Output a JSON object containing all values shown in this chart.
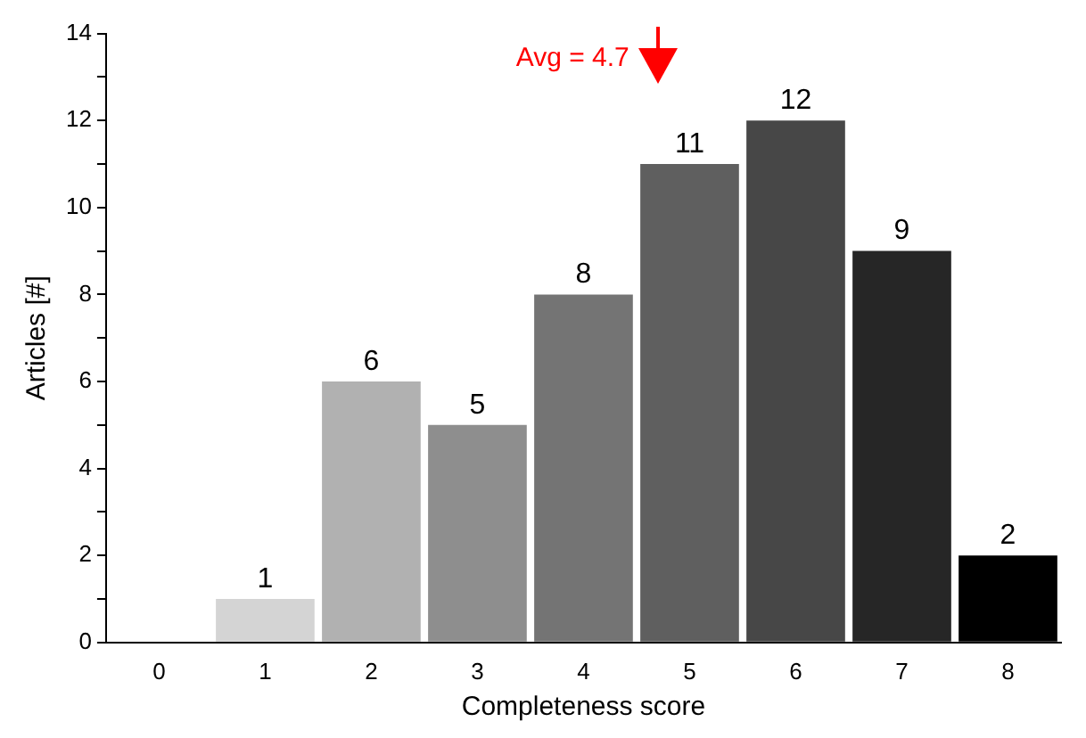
{
  "chart_data": {
    "type": "bar",
    "xlabel": "Completeness score",
    "ylabel": "Articles [#]",
    "x": [
      0,
      1,
      2,
      3,
      4,
      5,
      6,
      7,
      8
    ],
    "xlim": [
      -0.5,
      8.5
    ],
    "xticks": [
      0,
      1,
      2,
      3,
      4,
      5,
      6,
      7,
      8
    ],
    "values": [
      0,
      1,
      6,
      5,
      8,
      11,
      12,
      9,
      2
    ],
    "value_labels": [
      null,
      "1",
      "6",
      "5",
      "8",
      "11",
      "12",
      "9",
      "2"
    ],
    "colors": [
      "#e0e0e0",
      "#d4d4d4",
      "#b1b1b1",
      "#8e8e8e",
      "#747474",
      "#5f5f5f",
      "#474747",
      "#262626",
      "#000000"
    ],
    "ylim": [
      0,
      14
    ],
    "yticks": [
      0,
      {
        "value": 1,
        "label": null
      },
      2,
      {
        "value": 3,
        "label": null
      },
      4,
      {
        "value": 5,
        "label": null
      },
      6,
      {
        "value": 7,
        "label": null
      },
      8,
      {
        "value": 9,
        "label": null
      },
      10,
      {
        "value": 11,
        "label": null
      },
      12,
      {
        "value": 13,
        "label": null
      },
      14
    ],
    "grid": false,
    "legend": false,
    "ref_lines": [
      {
        "axis": "x",
        "value": 4.7,
        "label": "Avg = 4.7",
        "color": "#ff0000"
      }
    ]
  }
}
